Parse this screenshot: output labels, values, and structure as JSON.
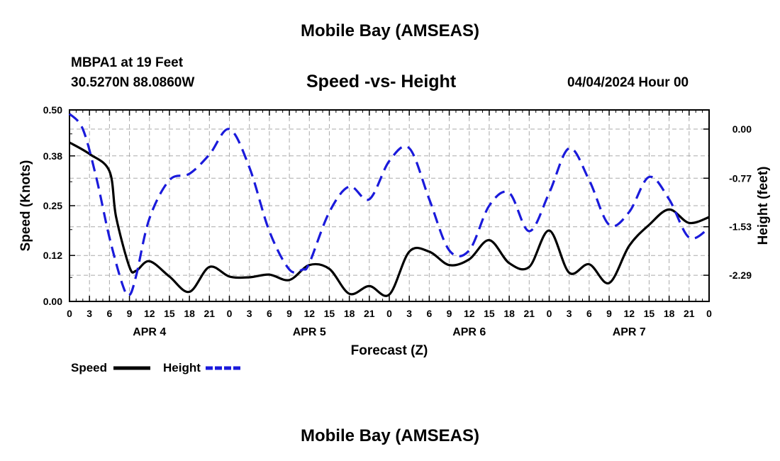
{
  "header": {
    "title": "Mobile Bay (AMSEAS)",
    "station": "MBPA1 at 19 Feet",
    "coordinates": "30.5270N  88.0860W",
    "datetime": "04/04/2024 Hour 00"
  },
  "footer": {
    "title": "Mobile Bay (AMSEAS)"
  },
  "chart_data": {
    "type": "line",
    "title": "Speed -vs- Height",
    "xlabel": "Forecast (Z)",
    "ylabel_left": "Speed (Knots)",
    "ylabel_right": "Height (feet)",
    "x_range": [
      0,
      96
    ],
    "x_tick_labels": [
      "0",
      "3",
      "6",
      "9",
      "12",
      "15",
      "18",
      "21",
      "0",
      "3",
      "6",
      "9",
      "12",
      "15",
      "18",
      "21",
      "0",
      "3",
      "6",
      "9",
      "12",
      "15",
      "18",
      "21",
      "0",
      "3",
      "6",
      "9",
      "12",
      "15",
      "18",
      "21",
      "0"
    ],
    "date_labels": [
      {
        "label": "APR 4",
        "hour": 12
      },
      {
        "label": "APR 5",
        "hour": 36
      },
      {
        "label": "APR 6",
        "hour": 60
      },
      {
        "label": "APR 7",
        "hour": 84
      }
    ],
    "left_axis": {
      "ylim": [
        0,
        0.5
      ],
      "ticks": [
        0.0,
        0.12,
        0.25,
        0.38,
        0.5
      ],
      "tick_labels": [
        "0.00",
        "0.12",
        "0.25",
        "0.38",
        "0.50"
      ]
    },
    "right_axis": {
      "ylim": [
        -2.7,
        0.3
      ],
      "ticks": [
        0.0,
        -0.77,
        -1.53,
        -2.29
      ],
      "tick_labels": [
        "0.00",
        "-0.77",
        "-1.53",
        "-2.29"
      ]
    },
    "grid": true,
    "series": [
      {
        "name": "Speed",
        "axis": "left",
        "color": "#000000",
        "style": "solid",
        "x": [
          0,
          3,
          6,
          7,
          9,
          10,
          12,
          15,
          18,
          21,
          24,
          27,
          30,
          33,
          36,
          39,
          42,
          45,
          48,
          51,
          54,
          57,
          60,
          63,
          66,
          69,
          72,
          75,
          78,
          81,
          84,
          87,
          90,
          93,
          96
        ],
        "y": [
          0.415,
          0.385,
          0.34,
          0.22,
          0.09,
          0.08,
          0.105,
          0.065,
          0.025,
          0.09,
          0.065,
          0.063,
          0.07,
          0.056,
          0.095,
          0.085,
          0.02,
          0.04,
          0.018,
          0.13,
          0.13,
          0.095,
          0.11,
          0.16,
          0.1,
          0.09,
          0.185,
          0.075,
          0.097,
          0.048,
          0.145,
          0.2,
          0.24,
          0.205,
          0.22
        ]
      },
      {
        "name": "Height",
        "axis": "right",
        "color": "#1a1adb",
        "style": "dashed",
        "x": [
          0,
          2,
          4,
          6,
          8,
          9,
          10,
          12,
          15,
          18,
          21,
          24,
          27,
          30,
          33,
          35,
          36,
          39,
          42,
          45,
          48,
          51,
          54,
          57,
          60,
          63,
          66,
          69,
          72,
          75,
          78,
          81,
          84,
          87,
          90,
          93,
          96
        ],
        "y": [
          0.24,
          0.0,
          -0.75,
          -1.7,
          -2.45,
          -2.6,
          -2.3,
          -1.4,
          -0.8,
          -0.7,
          -0.4,
          0.0,
          -0.6,
          -1.6,
          -2.2,
          -2.2,
          -2.1,
          -1.3,
          -0.9,
          -1.1,
          -0.5,
          -0.3,
          -1.1,
          -1.9,
          -1.9,
          -1.2,
          -1.0,
          -1.6,
          -1.0,
          -0.3,
          -0.8,
          -1.5,
          -1.3,
          -0.75,
          -1.1,
          -1.7,
          -1.55
        ]
      }
    ]
  }
}
